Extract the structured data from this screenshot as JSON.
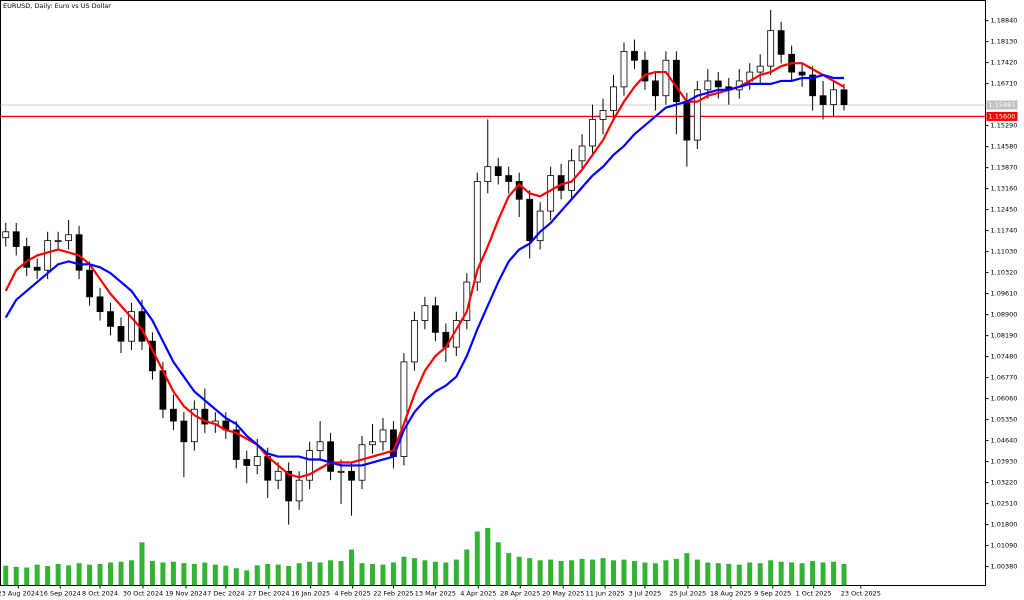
{
  "chart_data": {
    "type": "candlestick",
    "title": "EURUSD, Daily: Euro vs US Dollar",
    "open": [
      1.115,
      1.117,
      1.112,
      1.105,
      1.104,
      1.114,
      1.114,
      1.116,
      1.104,
      1.095,
      1.09,
      1.085,
      1.08,
      1.09,
      1.08,
      1.07,
      1.057,
      1.053,
      1.046,
      1.057,
      1.052,
      1.053,
      1.05,
      1.04,
      1.038,
      1.041,
      1.033,
      1.036,
      1.026,
      1.033,
      1.043,
      1.046,
      1.036,
      1.036,
      1.033,
      1.045,
      1.046,
      1.05,
      1.041,
      1.073,
      1.087,
      1.092,
      1.083,
      1.078,
      1.087,
      1.1,
      1.134,
      1.139,
      1.136,
      1.134,
      1.128,
      1.114,
      1.124,
      1.136,
      1.131,
      1.141,
      1.146,
      1.155,
      1.158,
      1.166,
      1.178,
      1.175,
      1.168,
      1.163,
      1.175,
      1.161,
      1.148,
      1.165,
      1.168,
      1.166,
      1.165,
      1.168,
      1.171,
      1.173,
      1.185,
      1.177,
      1.171,
      1.17,
      1.163,
      1.16,
      1.165
    ],
    "high": [
      1.12,
      1.12,
      1.115,
      1.108,
      1.117,
      1.117,
      1.121,
      1.119,
      1.107,
      1.098,
      1.093,
      1.088,
      1.093,
      1.094,
      1.083,
      1.073,
      1.062,
      1.056,
      1.06,
      1.064,
      1.056,
      1.056,
      1.053,
      1.043,
      1.047,
      1.044,
      1.039,
      1.039,
      1.036,
      1.046,
      1.053,
      1.049,
      1.04,
      1.039,
      1.048,
      1.052,
      1.054,
      1.053,
      1.076,
      1.09,
      1.095,
      1.095,
      1.086,
      1.09,
      1.103,
      1.137,
      1.155,
      1.142,
      1.139,
      1.137,
      1.131,
      1.127,
      1.139,
      1.14,
      1.145,
      1.15,
      1.16,
      1.162,
      1.17,
      1.181,
      1.182,
      1.178,
      1.171,
      1.178,
      1.178,
      1.164,
      1.168,
      1.172,
      1.171,
      1.169,
      1.172,
      1.174,
      1.177,
      1.192,
      1.188,
      1.18,
      1.174,
      1.173,
      1.168,
      1.168,
      1.167
    ],
    "low": [
      1.112,
      1.109,
      1.102,
      1.101,
      1.101,
      1.111,
      1.111,
      1.101,
      1.092,
      1.087,
      1.082,
      1.076,
      1.077,
      1.077,
      1.067,
      1.054,
      1.05,
      1.034,
      1.043,
      1.049,
      1.049,
      1.047,
      1.037,
      1.032,
      1.035,
      1.027,
      1.03,
      1.018,
      1.023,
      1.03,
      1.04,
      1.033,
      1.025,
      1.021,
      1.03,
      1.042,
      1.043,
      1.037,
      1.038,
      1.07,
      1.084,
      1.08,
      1.073,
      1.075,
      1.084,
      1.097,
      1.13,
      1.133,
      1.13,
      1.122,
      1.108,
      1.111,
      1.121,
      1.128,
      1.128,
      1.138,
      1.143,
      1.15,
      1.155,
      1.163,
      1.172,
      1.165,
      1.158,
      1.16,
      1.15,
      1.139,
      1.145,
      1.162,
      1.162,
      1.16,
      1.162,
      1.165,
      1.167,
      1.17,
      1.174,
      1.168,
      1.166,
      1.158,
      1.155,
      1.156,
      1.158
    ],
    "close": [
      1.117,
      1.112,
      1.105,
      1.104,
      1.114,
      1.114,
      1.116,
      1.104,
      1.095,
      1.09,
      1.085,
      1.08,
      1.09,
      1.08,
      1.07,
      1.057,
      1.053,
      1.046,
      1.057,
      1.052,
      1.053,
      1.05,
      1.04,
      1.038,
      1.041,
      1.033,
      1.036,
      1.026,
      1.033,
      1.043,
      1.046,
      1.036,
      1.036,
      1.033,
      1.045,
      1.046,
      1.05,
      1.041,
      1.073,
      1.087,
      1.092,
      1.083,
      1.078,
      1.087,
      1.1,
      1.134,
      1.139,
      1.136,
      1.134,
      1.128,
      1.114,
      1.124,
      1.136,
      1.131,
      1.141,
      1.146,
      1.155,
      1.158,
      1.166,
      1.178,
      1.175,
      1.168,
      1.163,
      1.175,
      1.161,
      1.148,
      1.165,
      1.168,
      1.166,
      1.165,
      1.168,
      1.171,
      1.173,
      1.185,
      1.177,
      1.171,
      1.17,
      1.163,
      1.16,
      1.165,
      1.16
    ],
    "lines": [
      {
        "color": "#ff0000",
        "values": [
          1.097,
          1.104,
          1.107,
          1.109,
          1.11,
          1.111,
          1.11,
          1.109,
          1.106,
          1.101,
          1.096,
          1.092,
          1.088,
          1.084,
          1.077,
          1.07,
          1.063,
          1.058,
          1.055,
          1.053,
          1.052,
          1.05,
          1.049,
          1.047,
          1.045,
          1.041,
          1.038,
          1.035,
          1.034,
          1.035,
          1.037,
          1.039,
          1.039,
          1.039,
          1.04,
          1.041,
          1.042,
          1.043,
          1.052,
          1.062,
          1.07,
          1.075,
          1.078,
          1.084,
          1.09,
          1.104,
          1.112,
          1.121,
          1.129,
          1.133,
          1.13,
          1.129,
          1.131,
          1.133,
          1.134,
          1.138,
          1.143,
          1.148,
          1.155,
          1.161,
          1.166,
          1.17,
          1.171,
          1.171,
          1.166,
          1.161,
          1.161,
          1.163,
          1.164,
          1.165,
          1.166,
          1.168,
          1.17,
          1.171,
          1.173,
          1.174,
          1.174,
          1.172,
          1.17,
          1.168,
          1.166
        ]
      },
      {
        "color": "#0000ff",
        "values": [
          1.088,
          1.094,
          1.097,
          1.1,
          1.103,
          1.106,
          1.107,
          1.106,
          1.106,
          1.105,
          1.103,
          1.1,
          1.097,
          1.092,
          1.087,
          1.08,
          1.073,
          1.068,
          1.063,
          1.06,
          1.057,
          1.054,
          1.052,
          1.048,
          1.045,
          1.042,
          1.041,
          1.041,
          1.041,
          1.04,
          1.04,
          1.039,
          1.038,
          1.038,
          1.038,
          1.039,
          1.04,
          1.041,
          1.05,
          1.056,
          1.06,
          1.063,
          1.065,
          1.068,
          1.075,
          1.084,
          1.092,
          1.1,
          1.107,
          1.111,
          1.113,
          1.117,
          1.12,
          1.124,
          1.128,
          1.132,
          1.136,
          1.139,
          1.143,
          1.146,
          1.15,
          1.153,
          1.156,
          1.159,
          1.16,
          1.161,
          1.163,
          1.164,
          1.165,
          1.165,
          1.166,
          1.167,
          1.167,
          1.167,
          1.168,
          1.168,
          1.169,
          1.169,
          1.17,
          1.169,
          1.169
        ]
      }
    ],
    "volume": {
      "color": "#00a000",
      "lim": [
        0,
        250000
      ],
      "values": [
        55000,
        52000,
        50000,
        58000,
        54000,
        60000,
        56000,
        62000,
        58000,
        60000,
        64000,
        66000,
        70000,
        120000,
        68000,
        64000,
        66000,
        62000,
        60000,
        64000,
        58000,
        55000,
        48000,
        42000,
        56000,
        60000,
        58000,
        54000,
        62000,
        66000,
        64000,
        70000,
        68000,
        100000,
        62000,
        60000,
        58000,
        64000,
        80000,
        76000,
        70000,
        66000,
        64000,
        72000,
        100000,
        150000,
        160000,
        120000,
        90000,
        80000,
        76000,
        70000,
        72000,
        68000,
        70000,
        74000,
        72000,
        76000,
        70000,
        72000,
        68000,
        64000,
        62000,
        70000,
        74000,
        90000,
        72000,
        64000,
        62000,
        60000,
        58000,
        64000,
        62000,
        70000,
        66000,
        64000,
        62000,
        68000,
        64000,
        66000,
        60000
      ]
    },
    "xlim": [
      -0.5,
      93.5
    ],
    "xticks": [
      {
        "value": 1.2,
        "label": "23 Aug 2024"
      },
      {
        "value": 5.2,
        "label": "16 Sep 2024"
      },
      {
        "value": 9.0,
        "label": "8 Oct 2024"
      },
      {
        "value": 13.1,
        "label": "30 Oct 2024"
      },
      {
        "value": 17.2,
        "label": "19 Nov 2024"
      },
      {
        "value": 21.0,
        "label": "7 Dec 2024"
      },
      {
        "value": 25.1,
        "label": "27 Dec 2024"
      },
      {
        "value": 29.1,
        "label": "16 Jan 2025"
      },
      {
        "value": 33.1,
        "label": "4 Feb 2025"
      },
      {
        "value": 37.0,
        "label": "22 Feb 2025"
      },
      {
        "value": 41.0,
        "label": "13 Mar 2025"
      },
      {
        "value": 45.1,
        "label": "4 Apr 2025"
      },
      {
        "value": 49.1,
        "label": "28 Apr 2025"
      },
      {
        "value": 53.2,
        "label": "20 May 2025"
      },
      {
        "value": 57.2,
        "label": "11 Jun 2025"
      },
      {
        "value": 61.0,
        "label": "3 Jul 2025"
      },
      {
        "value": 65.1,
        "label": "25 Jul 2025"
      },
      {
        "value": 69.2,
        "label": "18 Aug 2025"
      },
      {
        "value": 73.2,
        "label": "9 Sep 2025"
      },
      {
        "value": 77.1,
        "label": "1 Oct 2025"
      },
      {
        "value": 81.6,
        "label": "23 Oct 2025"
      }
    ],
    "ylim": [
      0.9974,
      1.1952
    ],
    "yticks": [
      {
        "value": 1.1884,
        "label": "1.18840"
      },
      {
        "value": 1.1813,
        "label": "1.18130"
      },
      {
        "value": 1.1742,
        "label": "1.17420"
      },
      {
        "value": 1.1671,
        "label": "1.16710"
      },
      {
        "value": 1.1529,
        "label": "1.15290"
      },
      {
        "value": 1.1458,
        "label": "1.14580"
      },
      {
        "value": 1.1387,
        "label": "1.13870"
      },
      {
        "value": 1.1316,
        "label": "1.13160"
      },
      {
        "value": 1.1245,
        "label": "1.12450"
      },
      {
        "value": 1.1174,
        "label": "1.11740"
      },
      {
        "value": 1.1103,
        "label": "1.11030"
      },
      {
        "value": 1.1032,
        "label": "1.10320"
      },
      {
        "value": 1.0961,
        "label": "1.09610"
      },
      {
        "value": 1.089,
        "label": "1.08900"
      },
      {
        "value": 1.0819,
        "label": "1.08190"
      },
      {
        "value": 1.0748,
        "label": "1.07480"
      },
      {
        "value": 1.0677,
        "label": "1.06770"
      },
      {
        "value": 1.0606,
        "label": "1.06060"
      },
      {
        "value": 1.0535,
        "label": "1.05350"
      },
      {
        "value": 1.0464,
        "label": "1.04640"
      },
      {
        "value": 1.0393,
        "label": "1.03930"
      },
      {
        "value": 1.0322,
        "label": "1.03220"
      },
      {
        "value": 1.0251,
        "label": "1.02510"
      },
      {
        "value": 1.018,
        "label": "1.01800"
      },
      {
        "value": 1.0109,
        "label": "1.01090"
      },
      {
        "value": 1.0038,
        "label": "1.00380"
      }
    ],
    "levels": [
      {
        "value": 1.15987,
        "label": "1.15987",
        "color": "#c0c0c0"
      },
      {
        "value": 1.156,
        "label": "1.15600",
        "color": "#ff0000"
      }
    ],
    "grid": false
  }
}
